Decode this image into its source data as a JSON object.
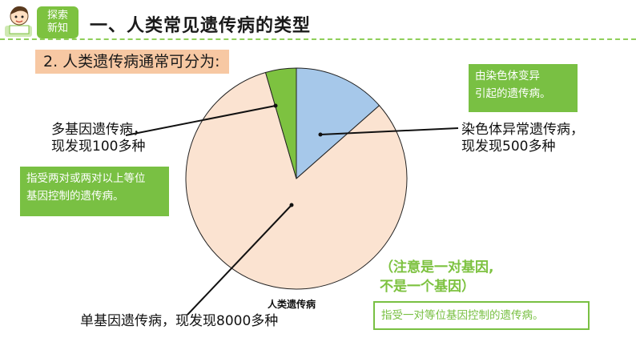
{
  "header": {
    "logo_line1": "探索",
    "logo_line2": "新知",
    "title": "一、人类常见遗传病的类型"
  },
  "subtitle": "2. 人类遗传病通常可分为:",
  "chart_data": {
    "type": "pie",
    "title": "人类遗传病",
    "slices": [
      {
        "name": "单基因遗传病",
        "value": 8000,
        "color": "#fbe3d1"
      },
      {
        "name": "多基因遗传病",
        "value": 100,
        "color": "#7dc240"
      },
      {
        "name": "染色体异常遗传病",
        "value": 500,
        "color": "#a6c8ea"
      }
    ]
  },
  "labels": {
    "multi_gene_line1": "多基因遗传病，",
    "multi_gene_line2": "现发现100多种",
    "chromosome_line1": "染色体异常遗传病，",
    "chromosome_line2": "现发现500多种",
    "single_gene": "单基因遗传病，现发现8000多种"
  },
  "notes": {
    "chromosome_note_line1": "由染色体变异",
    "chromosome_note_line2": "引起的遗传病。",
    "multi_note_line1": "指受两对或两对以上等位",
    "multi_note_line2": "基因控制的遗传病。",
    "single_note": "指受一对等位基因控制的遗传病。",
    "warning_line1": "（注意是一对基因,",
    "warning_line2": "不是一个基因）"
  }
}
